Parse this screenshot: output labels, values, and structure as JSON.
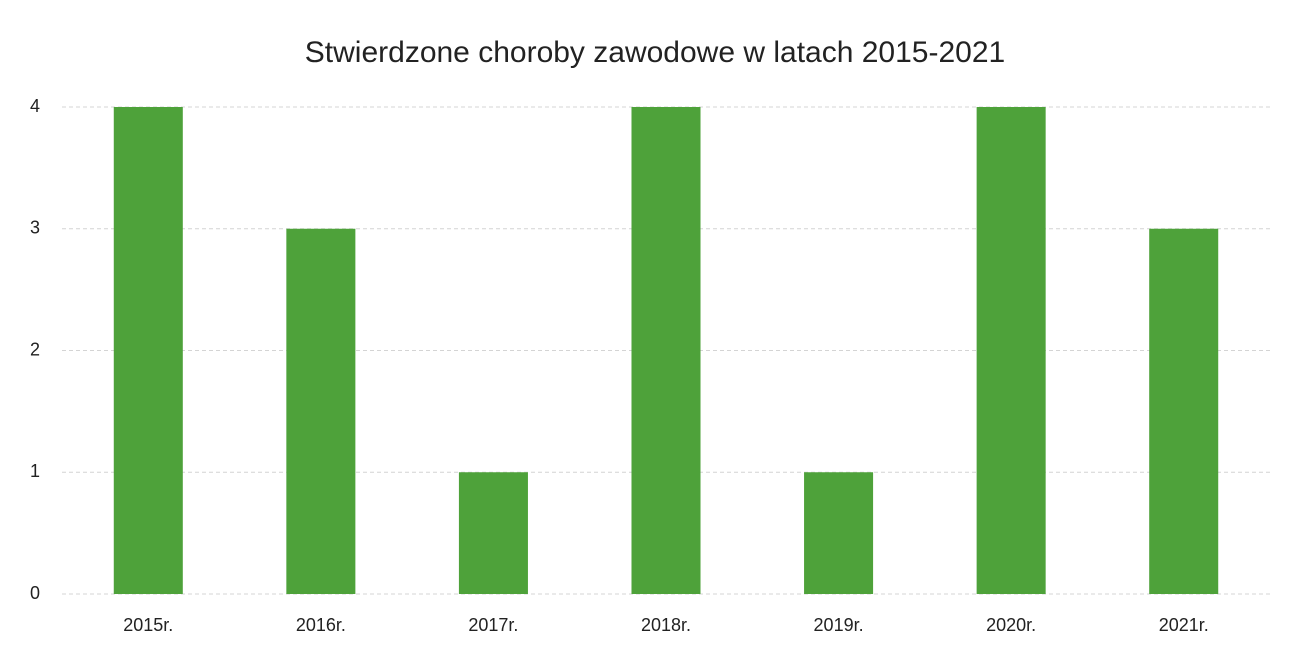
{
  "chart_data": {
    "type": "bar",
    "title": "Stwierdzone choroby zawodowe w latach 2015-2021",
    "categories": [
      "2015r.",
      "2016r.",
      "2017r.",
      "2018r.",
      "2019r.",
      "2020r.",
      "2021r."
    ],
    "values": [
      4,
      3,
      1,
      4,
      1,
      4,
      3
    ],
    "color": "#4ea23a",
    "ylim": [
      0,
      4
    ],
    "yticks": [
      0,
      1,
      2,
      3,
      4
    ],
    "grid": true
  }
}
